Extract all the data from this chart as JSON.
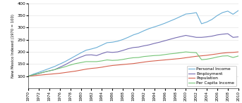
{
  "years": [
    1970,
    1971,
    1972,
    1973,
    1974,
    1975,
    1976,
    1977,
    1978,
    1979,
    1980,
    1981,
    1982,
    1983,
    1984,
    1985,
    1986,
    1987,
    1988,
    1989,
    1990,
    1991,
    1992,
    1993,
    1994,
    1995,
    1996,
    1997,
    1998,
    1999,
    2000,
    2001,
    2002,
    2003,
    2004,
    2005,
    2006,
    2007,
    2008,
    2009,
    2010
  ],
  "personal_income": [
    100,
    109,
    116,
    124,
    132,
    140,
    150,
    160,
    172,
    184,
    196,
    207,
    212,
    218,
    228,
    238,
    240,
    244,
    251,
    260,
    270,
    277,
    287,
    296,
    303,
    310,
    318,
    327,
    336,
    346,
    356,
    358,
    362,
    316,
    323,
    334,
    350,
    362,
    368,
    355,
    370
  ],
  "employment": [
    100,
    105,
    111,
    117,
    122,
    127,
    137,
    147,
    159,
    170,
    179,
    187,
    188,
    185,
    193,
    200,
    198,
    200,
    206,
    213,
    218,
    220,
    225,
    229,
    235,
    240,
    246,
    252,
    258,
    263,
    268,
    264,
    260,
    260,
    262,
    265,
    270,
    273,
    275,
    260,
    262
  ],
  "population": [
    100,
    102,
    104,
    106,
    108,
    110,
    112,
    115,
    118,
    121,
    125,
    129,
    132,
    134,
    137,
    141,
    144,
    146,
    148,
    150,
    152,
    155,
    158,
    161,
    163,
    165,
    167,
    169,
    171,
    173,
    176,
    179,
    182,
    184,
    186,
    189,
    192,
    195,
    197,
    198,
    200
  ],
  "per_capita_income": [
    100,
    106,
    111,
    117,
    122,
    127,
    133,
    139,
    146,
    152,
    156,
    160,
    160,
    160,
    163,
    167,
    165,
    166,
    169,
    173,
    176,
    177,
    181,
    183,
    185,
    186,
    189,
    192,
    194,
    197,
    200,
    198,
    197,
    168,
    170,
    174,
    179,
    183,
    184,
    177,
    183
  ],
  "personal_income_color": "#6aaed6",
  "employment_color": "#756bb1",
  "population_color": "#d6604d",
  "per_capita_income_color": "#74c476",
  "ylim": [
    50,
    400
  ],
  "yticks": [
    100,
    150,
    200,
    250,
    300,
    350,
    400
  ],
  "ylabel": "New Mexico Indexed (1970 = 100)",
  "legend_labels": [
    "Personal Income",
    "Employment",
    "Population",
    "Per Capita Income"
  ],
  "bg_color": "#FFFFFF",
  "grid_color": "#DDDDDD"
}
